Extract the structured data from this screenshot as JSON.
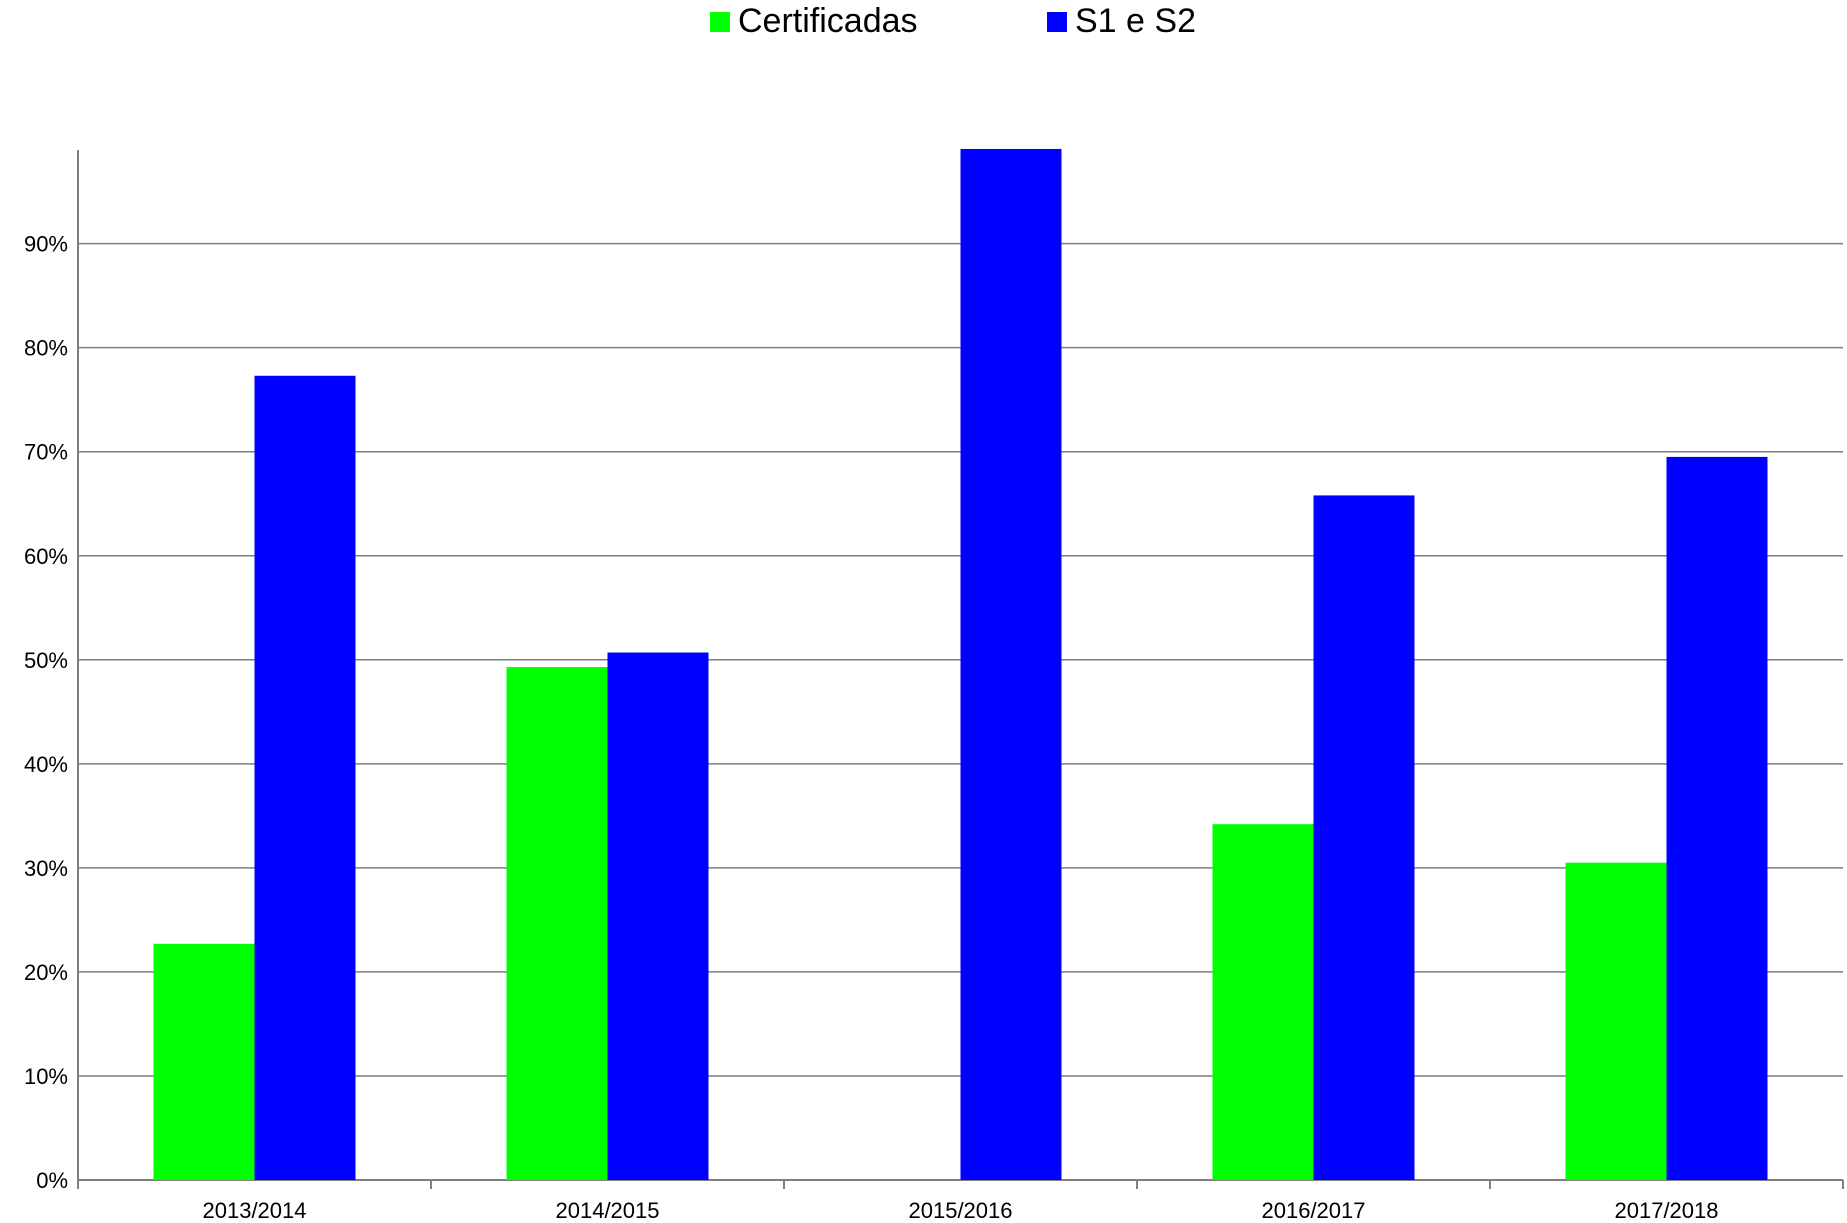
{
  "chart_data": {
    "type": "bar",
    "categories": [
      "2013/2014",
      "2014/2015",
      "2015/2016",
      "2016/2017",
      "2017/2018"
    ],
    "series": [
      {
        "name": "Certificadas",
        "color": "#00ff00",
        "values": [
          22.7,
          49.3,
          0,
          34.2,
          30.5
        ]
      },
      {
        "name": "S1 e S2",
        "color": "#0000ff",
        "values": [
          77.3,
          50.7,
          99.1,
          65.8,
          69.5
        ]
      }
    ],
    "yticks": [
      "0%",
      "10%",
      "20%",
      "30%",
      "40%",
      "50%",
      "60%",
      "70%",
      "80%",
      "90%"
    ],
    "ylim": [
      0,
      99
    ],
    "grid": true,
    "legend_position": "top-center",
    "title": "",
    "xlabel": "",
    "ylabel": ""
  }
}
